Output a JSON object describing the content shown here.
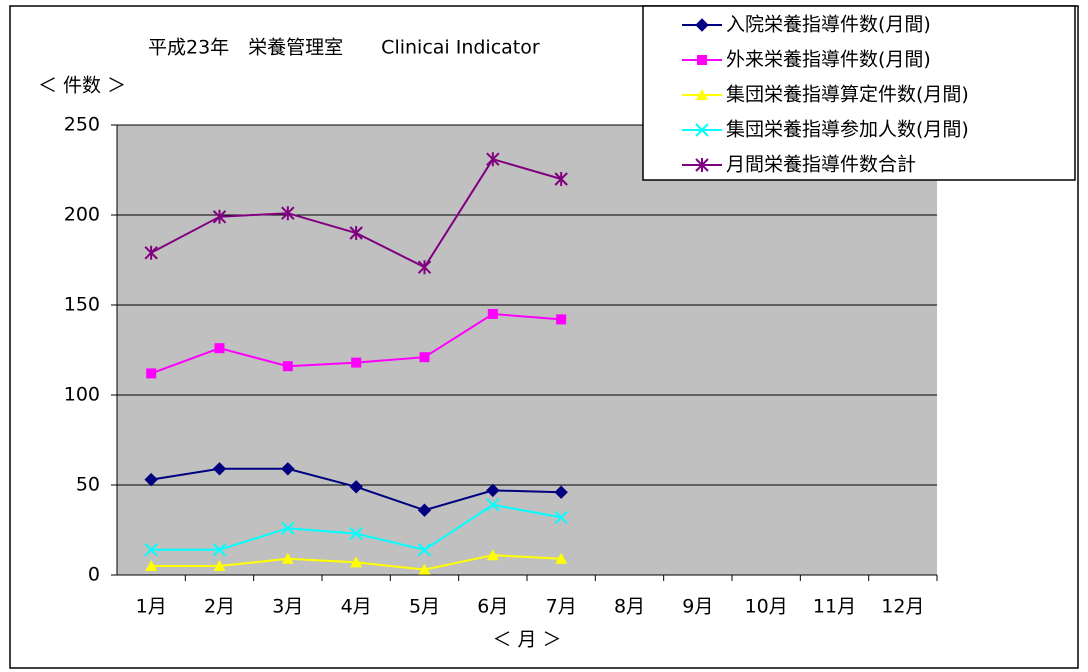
{
  "chart_data": {
    "type": "line",
    "title": "平成23年　栄養管理室　　Clinicai Indicator",
    "y_label": "＜ 件数 ＞",
    "x_label": "＜ 月 ＞",
    "categories": [
      "1月",
      "2月",
      "3月",
      "4月",
      "5月",
      "6月",
      "7月",
      "8月",
      "9月",
      "10月",
      "11月",
      "12月"
    ],
    "series": [
      {
        "name": "入院栄養指導件数(月間)",
        "color": "#000080",
        "marker": "diamond",
        "values": [
          53,
          59,
          59,
          49,
          36,
          47,
          46,
          null,
          null,
          null,
          null,
          null
        ]
      },
      {
        "name": "外来栄養指導件数(月間)",
        "color": "#ff00ff",
        "marker": "square",
        "values": [
          112,
          126,
          116,
          118,
          121,
          145,
          142,
          null,
          null,
          null,
          null,
          null
        ]
      },
      {
        "name": "集団栄養指導算定件数(月間)",
        "color": "#ffff00",
        "marker": "triangle",
        "values": [
          5,
          5,
          9,
          7,
          3,
          11,
          9,
          null,
          null,
          null,
          null,
          null
        ]
      },
      {
        "name": "集団栄養指導参加人数(月間)",
        "color": "#00ffff",
        "marker": "x",
        "values": [
          14,
          14,
          26,
          23,
          14,
          39,
          32,
          null,
          null,
          null,
          null,
          null
        ]
      },
      {
        "name": "月間栄養指導件数合計",
        "color": "#800080",
        "marker": "star",
        "values": [
          179,
          199,
          201,
          190,
          171,
          231,
          220,
          null,
          null,
          null,
          null,
          null
        ]
      }
    ],
    "ylim": [
      0,
      250
    ],
    "yticks": [
      0,
      50,
      100,
      150,
      200,
      250
    ],
    "grid": true,
    "legend": "top-right"
  }
}
